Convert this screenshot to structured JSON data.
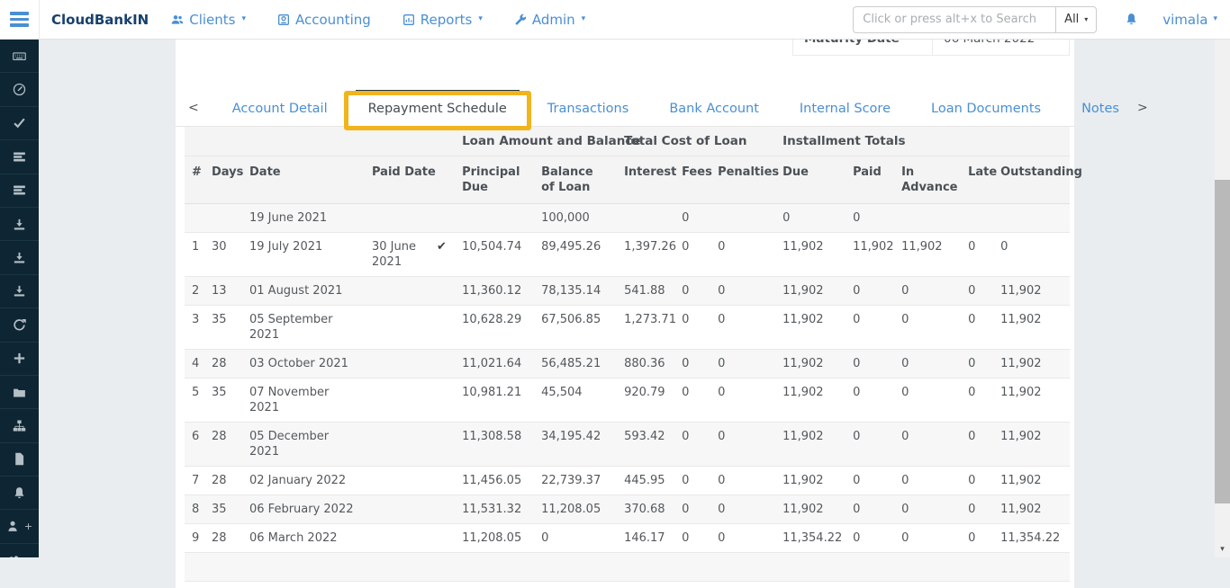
{
  "colors": {
    "accent_blue": "#4a8fd4",
    "brand_navy": "#17406d",
    "sidebar_bg": "#0e2633",
    "highlight_yellow": "#f0b41e"
  },
  "navbar": {
    "brand": "CloudBankIN",
    "items": [
      {
        "label": "Clients",
        "icon": "users-icon",
        "caret": "▾"
      },
      {
        "label": "Accounting",
        "icon": "accounting-icon",
        "caret": ""
      },
      {
        "label": "Reports",
        "icon": "bar-chart-icon",
        "caret": "▾"
      },
      {
        "label": "Admin",
        "icon": "wrench-icon",
        "caret": "▾"
      }
    ],
    "search": {
      "placeholder": "Click or press alt+x to Search",
      "filter": "All",
      "caret": "▾"
    },
    "user": {
      "name": "vimala",
      "caret": "▾"
    }
  },
  "sidebar": {
    "items": [
      {
        "icon": "keyboard-icon"
      },
      {
        "icon": "compass-icon"
      },
      {
        "icon": "check-icon"
      },
      {
        "icon": "list-icon"
      },
      {
        "icon": "list-icon"
      },
      {
        "icon": "download-icon"
      },
      {
        "icon": "download-icon"
      },
      {
        "icon": "download-icon"
      },
      {
        "icon": "refresh-icon"
      },
      {
        "icon": "plus-icon"
      },
      {
        "icon": "folder-icon"
      },
      {
        "icon": "sitemap-icon"
      },
      {
        "icon": "file-icon"
      },
      {
        "icon": "bell-icon"
      },
      {
        "icon": "user-plus-icon",
        "suffix": "+"
      },
      {
        "icon": "users-plus-icon",
        "suffix": "+"
      }
    ]
  },
  "summary": {
    "maturity_label": "Maturity Date",
    "maturity_value": "06 March 2022"
  },
  "tabs": {
    "prev": "<",
    "next": ">",
    "active": "Repayment Schedule",
    "items": [
      "Account Detail",
      "Repayment Schedule",
      "Transactions",
      "Bank Account",
      "Internal Score",
      "Loan Documents",
      "Notes"
    ]
  },
  "table": {
    "group_headers": [
      "Loan Amount and Balance",
      "Total Cost of Loan",
      "Installment Totals"
    ],
    "columns": [
      "#",
      "Days",
      "Date",
      "Paid Date",
      "Principal Due",
      "Balance of Loan",
      "Interest",
      "Fees",
      "Penalties",
      "Due",
      "Paid",
      "In Advance",
      "Late",
      "Outstanding"
    ],
    "check_glyph": "✔",
    "rows": [
      {
        "num": "",
        "days": "",
        "date": "19 June 2021",
        "paid_date": "",
        "paid_check": false,
        "principal_due": "",
        "balance_of_loan": "100,000",
        "interest": "",
        "fees": "0",
        "penalties": "",
        "due": "0",
        "paid": "0",
        "in_advance": "",
        "late": "",
        "outstanding": ""
      },
      {
        "num": "1",
        "days": "30",
        "date": "19 July 2021",
        "paid_date": "30 June 2021",
        "paid_check": true,
        "principal_due": "10,504.74",
        "balance_of_loan": "89,495.26",
        "interest": "1,397.26",
        "fees": "0",
        "penalties": "0",
        "due": "11,902",
        "paid": "11,902",
        "in_advance": "11,902",
        "late": "0",
        "outstanding": "0"
      },
      {
        "num": "2",
        "days": "13",
        "date": "01 August 2021",
        "paid_date": "",
        "paid_check": false,
        "principal_due": "11,360.12",
        "balance_of_loan": "78,135.14",
        "interest": "541.88",
        "fees": "0",
        "penalties": "0",
        "due": "11,902",
        "paid": "0",
        "in_advance": "0",
        "late": "0",
        "outstanding": "11,902"
      },
      {
        "num": "3",
        "days": "35",
        "date": "05 September 2021",
        "paid_date": "",
        "paid_check": false,
        "principal_due": "10,628.29",
        "balance_of_loan": "67,506.85",
        "interest": "1,273.71",
        "fees": "0",
        "penalties": "0",
        "due": "11,902",
        "paid": "0",
        "in_advance": "0",
        "late": "0",
        "outstanding": "11,902"
      },
      {
        "num": "4",
        "days": "28",
        "date": "03 October 2021",
        "paid_date": "",
        "paid_check": false,
        "principal_due": "11,021.64",
        "balance_of_loan": "56,485.21",
        "interest": "880.36",
        "fees": "0",
        "penalties": "0",
        "due": "11,902",
        "paid": "0",
        "in_advance": "0",
        "late": "0",
        "outstanding": "11,902"
      },
      {
        "num": "5",
        "days": "35",
        "date": "07 November 2021",
        "paid_date": "",
        "paid_check": false,
        "principal_due": "10,981.21",
        "balance_of_loan": "45,504",
        "interest": "920.79",
        "fees": "0",
        "penalties": "0",
        "due": "11,902",
        "paid": "0",
        "in_advance": "0",
        "late": "0",
        "outstanding": "11,902"
      },
      {
        "num": "6",
        "days": "28",
        "date": "05 December 2021",
        "paid_date": "",
        "paid_check": false,
        "principal_due": "11,308.58",
        "balance_of_loan": "34,195.42",
        "interest": "593.42",
        "fees": "0",
        "penalties": "0",
        "due": "11,902",
        "paid": "0",
        "in_advance": "0",
        "late": "0",
        "outstanding": "11,902"
      },
      {
        "num": "7",
        "days": "28",
        "date": "02 January 2022",
        "paid_date": "",
        "paid_check": false,
        "principal_due": "11,456.05",
        "balance_of_loan": "22,739.37",
        "interest": "445.95",
        "fees": "0",
        "penalties": "0",
        "due": "11,902",
        "paid": "0",
        "in_advance": "0",
        "late": "0",
        "outstanding": "11,902"
      },
      {
        "num": "8",
        "days": "35",
        "date": "06 February 2022",
        "paid_date": "",
        "paid_check": false,
        "principal_due": "11,531.32",
        "balance_of_loan": "11,208.05",
        "interest": "370.68",
        "fees": "0",
        "penalties": "0",
        "due": "11,902",
        "paid": "0",
        "in_advance": "0",
        "late": "0",
        "outstanding": "11,902"
      },
      {
        "num": "9",
        "days": "28",
        "date": "06 March 2022",
        "paid_date": "",
        "paid_check": false,
        "principal_due": "11,208.05",
        "balance_of_loan": "0",
        "interest": "146.17",
        "fees": "0",
        "penalties": "0",
        "due": "11,354.22",
        "paid": "0",
        "in_advance": "0",
        "late": "0",
        "outstanding": "11,354.22"
      }
    ]
  }
}
